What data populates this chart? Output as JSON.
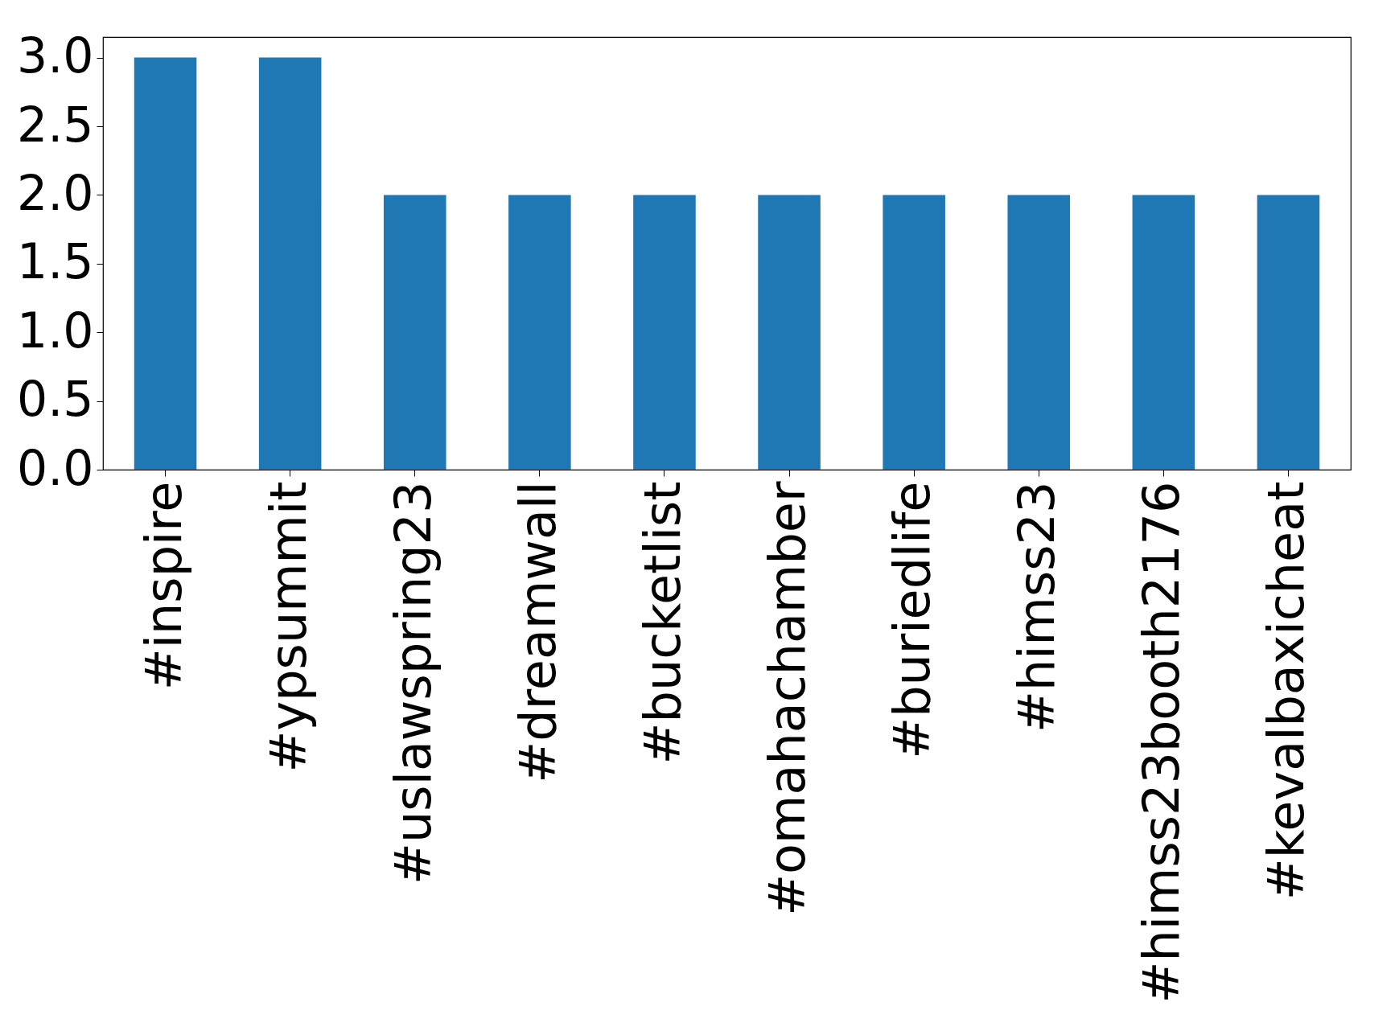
{
  "chart_data": {
    "type": "bar",
    "categories": [
      "#inspire",
      "#ypsummit",
      "#uslawspring23",
      "#dreamwall",
      "#bucketlist",
      "#omahachamber",
      "#buriedlife",
      "#himss23",
      "#himss23booth2176",
      "#kevalbaxicheat"
    ],
    "values": [
      3,
      3,
      2,
      2,
      2,
      2,
      2,
      2,
      2,
      2
    ],
    "color": "#1f77b4",
    "ylim": [
      0,
      3.15
    ],
    "yticks": [
      {
        "value": 0,
        "label": "0.0"
      },
      {
        "value": 0.5,
        "label": "0.5"
      },
      {
        "value": 1,
        "label": "1.0"
      },
      {
        "value": 1.5,
        "label": "1.5"
      },
      {
        "value": 2,
        "label": "2.0"
      },
      {
        "value": 2.5,
        "label": "2.5"
      },
      {
        "value": 3,
        "label": "3.0"
      }
    ],
    "grid": false
  }
}
